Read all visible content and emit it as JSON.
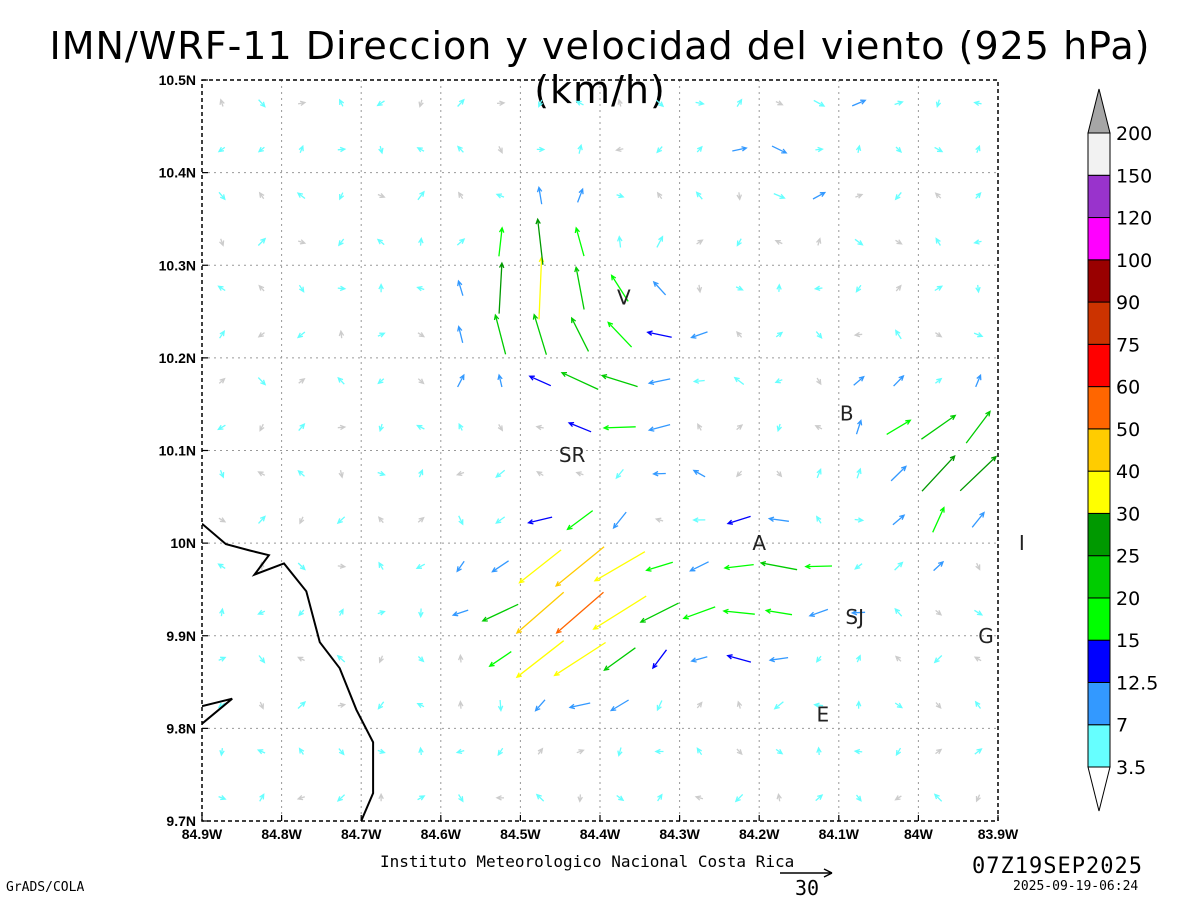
{
  "title": "IMN/WRF-11 Direccion y velocidad del viento (925 hPa)(km/h)",
  "footer": {
    "institution": "Instituto Meteorologico Nacional Costa Rica",
    "software": "GrADS/COLA",
    "valid_time": "07Z19SEP2025",
    "run_stamp": "2025-09-19-06:24",
    "reference_vector_label": "30"
  },
  "axes": {
    "x_ticks": [
      "84.9W",
      "84.8W",
      "84.7W",
      "84.6W",
      "84.5W",
      "84.4W",
      "84.3W",
      "84.2W",
      "84.1W",
      "84W",
      "83.9W"
    ],
    "x_values": [
      -84.9,
      -84.8,
      -84.7,
      -84.6,
      -84.5,
      -84.4,
      -84.3,
      -84.2,
      -84.1,
      -84.0,
      -83.9
    ],
    "y_ticks": [
      "9.7N",
      "9.8N",
      "9.9N",
      "10N",
      "10.1N",
      "10.2N",
      "10.3N",
      "10.4N",
      "10.5N"
    ],
    "y_values": [
      9.7,
      9.8,
      9.9,
      10.0,
      10.1,
      10.2,
      10.3,
      10.4,
      10.5
    ],
    "lon_range": [
      -84.9,
      -83.9
    ],
    "lat_range": [
      9.7,
      10.5
    ],
    "grid": "dotted"
  },
  "stations": [
    {
      "label": "V",
      "lon": -84.37,
      "lat": 10.265
    },
    {
      "label": "B",
      "lon": -84.09,
      "lat": 10.14
    },
    {
      "label": "SR",
      "lon": -84.435,
      "lat": 10.095
    },
    {
      "label": "A",
      "lon": -84.2,
      "lat": 10.0
    },
    {
      "label": "SJ",
      "lon": -84.08,
      "lat": 9.92
    },
    {
      "label": "G",
      "lon": -83.915,
      "lat": 9.9
    },
    {
      "label": "I",
      "lon": -83.87,
      "lat": 10.0
    },
    {
      "label": "E",
      "lon": -84.12,
      "lat": 9.815
    }
  ],
  "coastline": [
    [
      [
        -84.9,
        10.021
      ],
      [
        -84.87,
        9.999
      ],
      [
        -84.84,
        9.992
      ],
      [
        -84.816,
        9.987
      ],
      [
        -84.834,
        9.966
      ],
      [
        -84.797,
        9.978
      ],
      [
        -84.769,
        9.948
      ],
      [
        -84.752,
        9.893
      ],
      [
        -84.727,
        9.865
      ],
      [
        -84.706,
        9.82
      ],
      [
        -84.685,
        9.785
      ],
      [
        -84.685,
        9.73
      ],
      [
        -84.7,
        9.7
      ]
    ],
    [
      [
        -84.9,
        9.824
      ],
      [
        -84.862,
        9.832
      ],
      [
        -84.9,
        9.805
      ]
    ]
  ],
  "colorbar": {
    "labels": [
      "3.5",
      "7",
      "12.5",
      "15",
      "20",
      "25",
      "30",
      "40",
      "50",
      "60",
      "75",
      "90",
      "100",
      "120",
      "150",
      "200"
    ],
    "colors": [
      "#ffffff",
      "#66ffff",
      "#3399ff",
      "#0000ff",
      "#00ff00",
      "#00cc00",
      "#009900",
      "#ffff00",
      "#ffcc00",
      "#ff6600",
      "#ff0000",
      "#cc3300",
      "#990000",
      "#ff00ff",
      "#9933cc",
      "#f2f2f2",
      "#a6a6a6"
    ]
  },
  "chart_data": {
    "type": "vector field",
    "quantity": "wind direction and speed at 925 hPa",
    "units": "km/h",
    "grid_spacing_deg": 0.05,
    "reference_vector_kmh": 30,
    "features": [
      {
        "name": "strong southwesterly jet",
        "lon": -84.43,
        "lat": 9.93,
        "speed_kmh": 55,
        "dir_toward": "SW"
      },
      {
        "name": "easterly flow",
        "lon": -84.2,
        "lat": 9.95,
        "speed_kmh": 22,
        "dir_toward": "W"
      },
      {
        "name": "westward flow north of SR",
        "lon": -84.38,
        "lat": 10.18,
        "speed_kmh": 22,
        "dir_toward": "W"
      },
      {
        "name": "northerly outflow",
        "lon": -84.47,
        "lat": 10.27,
        "speed_kmh": 35,
        "dir_toward": "N"
      },
      {
        "name": "eastern inflow",
        "lon": -83.96,
        "lat": 10.09,
        "speed_kmh": 28,
        "dir_toward": "NE"
      },
      {
        "name": "weak northern flow",
        "lon": -84.15,
        "lat": 10.45,
        "speed_kmh": 8,
        "dir_toward": "E"
      }
    ]
  }
}
